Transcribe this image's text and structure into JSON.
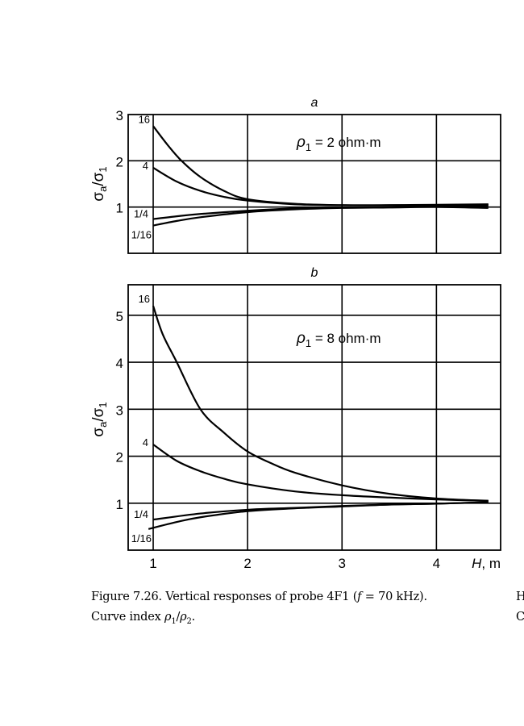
{
  "chart_data": [
    {
      "type": "line",
      "panel_label": "a",
      "annotation": {
        "symbol": "ρ",
        "subscript": "1",
        "text": " = 2 ohm·m"
      },
      "ylabel": {
        "main": "σ",
        "sub_a": "a",
        "slash": "/σ",
        "sub_1": "1"
      },
      "xlabel": "",
      "xlim": [
        0.735,
        4.68
      ],
      "ylim": [
        0,
        3
      ],
      "xticks": [
        1,
        2,
        3,
        4
      ],
      "xtick_labels": [],
      "yticks": [
        1,
        2,
        3
      ],
      "ytick_labels": [
        "1",
        "2",
        "3"
      ],
      "grid": true,
      "series": [
        {
          "name": "16",
          "x": [
            1,
            1.15,
            1.3,
            1.5,
            1.75,
            2,
            2.5,
            3,
            3.5,
            4,
            4.55
          ],
          "y": [
            2.75,
            2.35,
            2.0,
            1.65,
            1.35,
            1.17,
            1.07,
            1.04,
            1.04,
            1.05,
            1.06
          ]
        },
        {
          "name": "4",
          "x": [
            1,
            1.25,
            1.5,
            1.75,
            2,
            2.5,
            3,
            3.5,
            4,
            4.55
          ],
          "y": [
            1.85,
            1.55,
            1.35,
            1.22,
            1.14,
            1.06,
            1.04,
            1.04,
            1.04,
            1.05
          ]
        },
        {
          "name": "1/4",
          "x": [
            1,
            1.25,
            1.5,
            2,
            2.5,
            3,
            3.5,
            4,
            4.55
          ],
          "y": [
            0.74,
            0.8,
            0.85,
            0.92,
            0.97,
            0.99,
            1.0,
            1.01,
            1.02
          ]
        },
        {
          "name": "1/16",
          "x": [
            1,
            1.25,
            1.5,
            2,
            2.5,
            3,
            3.5,
            4,
            4.55
          ],
          "y": [
            0.6,
            0.7,
            0.78,
            0.89,
            0.95,
            0.98,
            0.99,
            1.0,
            0.98
          ]
        }
      ]
    },
    {
      "type": "line",
      "panel_label": "b",
      "annotation": {
        "symbol": "ρ",
        "subscript": "1",
        "text": " = 8 ohm·m"
      },
      "ylabel": {
        "main": "σ",
        "sub_a": "a",
        "slash": "/σ",
        "sub_1": "1"
      },
      "xlabel": {
        "main": "H",
        "unit": ", m"
      },
      "xlim": [
        0.735,
        4.68
      ],
      "ylim": [
        0,
        5.65
      ],
      "xticks": [
        1,
        2,
        3,
        4
      ],
      "xtick_labels": [
        "1",
        "2",
        "3",
        "4"
      ],
      "yticks": [
        1,
        2,
        3,
        4,
        5
      ],
      "ytick_labels": [
        "1",
        "2",
        "3",
        "4",
        "5"
      ],
      "grid": true,
      "series": [
        {
          "name": "16",
          "x": [
            1,
            1.1,
            1.25,
            1.5,
            1.75,
            2,
            2.25,
            2.5,
            3,
            3.5,
            4,
            4.55
          ],
          "y": [
            5.2,
            4.6,
            4.0,
            3.0,
            2.5,
            2.1,
            1.85,
            1.65,
            1.38,
            1.2,
            1.1,
            1.05
          ]
        },
        {
          "name": "4",
          "x": [
            1,
            1.25,
            1.5,
            1.75,
            2,
            2.5,
            3,
            3.5,
            4,
            4.55
          ],
          "y": [
            2.25,
            1.9,
            1.68,
            1.52,
            1.4,
            1.25,
            1.17,
            1.12,
            1.08,
            1.05
          ]
        },
        {
          "name": "1/4",
          "x": [
            1,
            1.5,
            2,
            2.5,
            3,
            3.5,
            4,
            4.55
          ],
          "y": [
            0.65,
            0.78,
            0.86,
            0.9,
            0.94,
            0.97,
            0.99,
            1.02
          ]
        },
        {
          "name": "1/16",
          "x": [
            0.95,
            1.25,
            1.5,
            2,
            2.5,
            3,
            3.5,
            4,
            4.55
          ],
          "y": [
            0.45,
            0.6,
            0.7,
            0.83,
            0.89,
            0.93,
            0.97,
            0.99,
            1.02
          ]
        }
      ]
    }
  ],
  "caption": {
    "line1_pre": "Figure 7.26.  Vertical responses of probe 4F1 (",
    "line1_f": "f",
    "line1_post": " = 70 kHz).",
    "line2_pre": "Curve index ",
    "line2_rho1": "ρ",
    "line2_sub1": "1",
    "line2_slash": "/",
    "line2_rho2": "ρ",
    "line2_sub2": "2",
    "line2_post": "."
  },
  "adjacent_column_fragments": [
    "H",
    "C"
  ]
}
